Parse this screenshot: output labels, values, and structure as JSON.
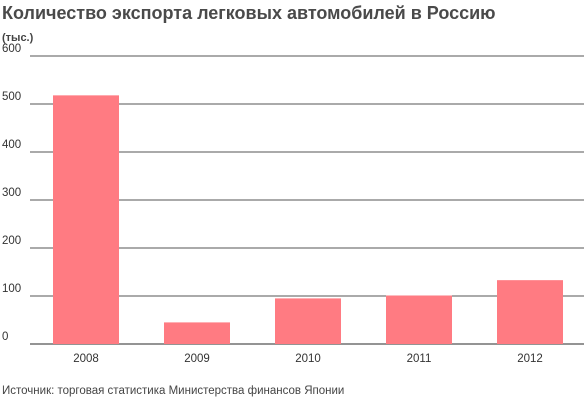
{
  "header": {
    "title": "Количество экспорта легковых автомобилей в Россию",
    "unit_label": "(тыс.)"
  },
  "footer": {
    "source": "Источник: торговая статистика Министерства финансов Японии"
  },
  "colors": {
    "bar": "#ff7b82",
    "gridline": "#555555",
    "axis": "#555555"
  },
  "chart_data": {
    "type": "bar",
    "title": "Количество экспорта легковых автомобилей в Россию",
    "ylabel": "(тыс.)",
    "xlabel": "",
    "categories": [
      "2008",
      "2009",
      "2010",
      "2011",
      "2012"
    ],
    "values": [
      518,
      45,
      95,
      101,
      133
    ],
    "ylim": [
      0,
      600
    ],
    "yticks": [
      0,
      100,
      200,
      300,
      400,
      500,
      600
    ],
    "grid": true,
    "legend": "none"
  }
}
